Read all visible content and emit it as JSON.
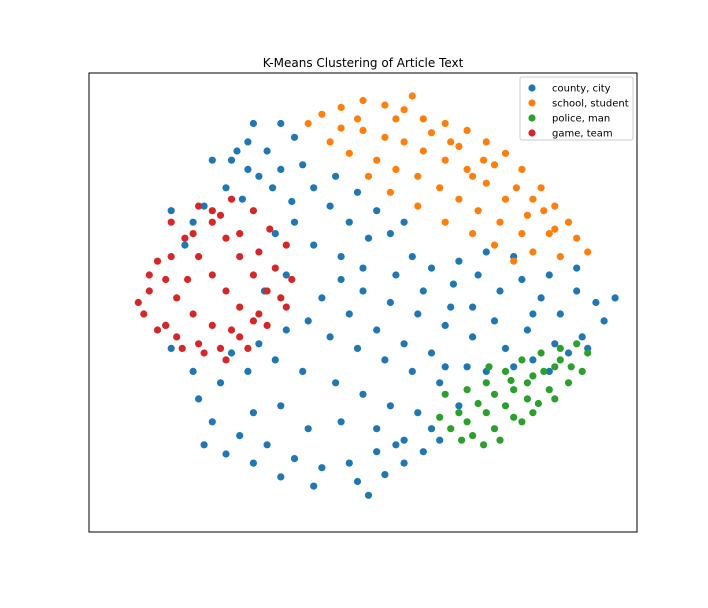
{
  "chart_data": {
    "type": "scatter",
    "title": "K-Means Clustering of Article Text",
    "xlabel": "",
    "ylabel": "",
    "xlim": [
      -1,
      1
    ],
    "ylim": [
      -1,
      1
    ],
    "grid": false,
    "axes_ticks": false,
    "legend_position": "top-right",
    "marker": "circle",
    "series": [
      {
        "name": "county, city",
        "color": "#1f77b4",
        "points": [
          [
            -0.48,
            0.62
          ],
          [
            -0.42,
            0.7
          ],
          [
            -0.35,
            0.66
          ],
          [
            -0.3,
            0.58
          ],
          [
            -0.22,
            0.6
          ],
          [
            -0.18,
            0.5
          ],
          [
            -0.26,
            0.44
          ],
          [
            -0.38,
            0.55
          ],
          [
            -0.5,
            0.5
          ],
          [
            -0.55,
            0.62
          ],
          [
            -0.44,
            0.45
          ],
          [
            -0.12,
            0.42
          ],
          [
            -0.05,
            0.35
          ],
          [
            0.02,
            0.28
          ],
          [
            0.1,
            0.3
          ],
          [
            0.18,
            0.2
          ],
          [
            0.25,
            0.15
          ],
          [
            0.33,
            0.08
          ],
          [
            0.42,
            0.12
          ],
          [
            0.5,
            0.05
          ],
          [
            0.58,
            0.1
          ],
          [
            0.65,
            0.02
          ],
          [
            0.72,
            -0.05
          ],
          [
            0.78,
            0.05
          ],
          [
            0.85,
            0.0
          ],
          [
            0.88,
            -0.08
          ],
          [
            0.8,
            -0.15
          ],
          [
            0.7,
            -0.18
          ],
          [
            0.6,
            -0.12
          ],
          [
            0.52,
            -0.2
          ],
          [
            0.4,
            -0.15
          ],
          [
            0.3,
            -0.1
          ],
          [
            0.2,
            -0.05
          ],
          [
            0.1,
            0.0
          ],
          [
            0.0,
            0.05
          ],
          [
            -0.08,
            0.1
          ],
          [
            -0.15,
            0.02
          ],
          [
            -0.2,
            -0.08
          ],
          [
            -0.12,
            -0.15
          ],
          [
            -0.02,
            -0.2
          ],
          [
            0.08,
            -0.25
          ],
          [
            0.18,
            -0.3
          ],
          [
            0.28,
            -0.35
          ],
          [
            0.35,
            -0.45
          ],
          [
            0.25,
            -0.55
          ],
          [
            0.15,
            -0.6
          ],
          [
            0.05,
            -0.65
          ],
          [
            -0.05,
            -0.7
          ],
          [
            -0.15,
            -0.72
          ],
          [
            -0.25,
            -0.68
          ],
          [
            -0.35,
            -0.62
          ],
          [
            -0.45,
            -0.58
          ],
          [
            -0.55,
            -0.52
          ],
          [
            -0.6,
            -0.42
          ],
          [
            -0.52,
            -0.35
          ],
          [
            -0.42,
            -0.3
          ],
          [
            -0.32,
            -0.25
          ],
          [
            -0.22,
            -0.3
          ],
          [
            -0.1,
            -0.35
          ],
          [
            0.0,
            -0.4
          ],
          [
            0.1,
            -0.45
          ],
          [
            -0.3,
            -0.45
          ],
          [
            -0.4,
            -0.48
          ],
          [
            -0.2,
            -0.55
          ],
          [
            -0.08,
            -0.52
          ],
          [
            0.05,
            -0.55
          ],
          [
            0.2,
            -0.48
          ],
          [
            0.12,
            -0.62
          ],
          [
            -0.02,
            -0.78
          ],
          [
            0.08,
            -0.75
          ],
          [
            -0.18,
            -0.8
          ],
          [
            0.15,
            -0.7
          ],
          [
            0.22,
            -0.65
          ],
          [
            -0.62,
            -0.3
          ],
          [
            -0.7,
            -0.2
          ],
          [
            -0.72,
            -0.1
          ],
          [
            -0.65,
            0.25
          ],
          [
            -0.62,
            0.35
          ],
          [
            -0.58,
            0.42
          ],
          [
            -0.7,
            0.4
          ],
          [
            -0.1,
            0.55
          ],
          [
            -0.02,
            0.48
          ],
          [
            0.05,
            0.4
          ],
          [
            0.15,
            0.35
          ],
          [
            -0.25,
            0.35
          ],
          [
            -0.32,
            0.3
          ],
          [
            -0.18,
            0.25
          ],
          [
            -0.08,
            0.2
          ],
          [
            0.45,
            -0.3
          ],
          [
            0.55,
            -0.28
          ],
          [
            0.62,
            -0.25
          ],
          [
            0.68,
            -0.3
          ],
          [
            0.75,
            -0.22
          ],
          [
            0.82,
            -0.2
          ],
          [
            0.92,
            0.02
          ],
          [
            0.78,
            0.15
          ],
          [
            0.68,
            0.12
          ],
          [
            0.55,
            0.2
          ],
          [
            0.45,
            0.22
          ],
          [
            0.35,
            0.18
          ],
          [
            -0.05,
            -0.05
          ],
          [
            0.05,
            -0.12
          ],
          [
            0.15,
            -0.18
          ],
          [
            -0.28,
            -0.12
          ],
          [
            -0.38,
            -0.18
          ],
          [
            -0.48,
            -0.22
          ],
          [
            0.25,
            -0.22
          ],
          [
            0.38,
            -0.28
          ],
          [
            -0.28,
            0.12
          ],
          [
            -0.36,
            0.05
          ],
          [
            -0.42,
            0.58
          ],
          [
            -0.4,
            0.78
          ],
          [
            -0.3,
            0.78
          ],
          [
            -0.25,
            0.72
          ],
          [
            -0.46,
            0.66
          ],
          [
            -0.33,
            0.5
          ],
          [
            0.0,
            0.15
          ],
          [
            0.12,
            0.12
          ],
          [
            0.22,
            0.05
          ],
          [
            0.32,
            -0.02
          ],
          [
            -0.58,
            -0.62
          ],
          [
            -0.5,
            -0.66
          ],
          [
            -0.4,
            -0.7
          ],
          [
            -0.3,
            -0.76
          ],
          [
            0.02,
            -0.84
          ],
          [
            0.28,
            -0.6
          ],
          [
            0.3,
            -0.28
          ],
          [
            0.4,
            -0.02
          ],
          [
            0.48,
            -0.08
          ],
          [
            0.62,
            -0.05
          ]
        ]
      },
      {
        "name": "school, student",
        "color": "#ff7f0e",
        "points": [
          [
            -0.15,
            0.82
          ],
          [
            -0.08,
            0.85
          ],
          [
            0.0,
            0.88
          ],
          [
            0.08,
            0.86
          ],
          [
            0.15,
            0.84
          ],
          [
            0.22,
            0.8
          ],
          [
            0.3,
            0.78
          ],
          [
            0.38,
            0.75
          ],
          [
            0.45,
            0.7
          ],
          [
            0.52,
            0.65
          ],
          [
            0.58,
            0.58
          ],
          [
            0.65,
            0.5
          ],
          [
            0.7,
            0.42
          ],
          [
            0.75,
            0.35
          ],
          [
            0.78,
            0.28
          ],
          [
            0.68,
            0.3
          ],
          [
            0.6,
            0.38
          ],
          [
            0.52,
            0.45
          ],
          [
            0.45,
            0.52
          ],
          [
            0.38,
            0.58
          ],
          [
            0.3,
            0.62
          ],
          [
            0.22,
            0.66
          ],
          [
            0.15,
            0.7
          ],
          [
            0.08,
            0.72
          ],
          [
            0.0,
            0.75
          ],
          [
            -0.08,
            0.76
          ],
          [
            -0.12,
            0.7
          ],
          [
            -0.05,
            0.65
          ],
          [
            0.05,
            0.62
          ],
          [
            0.12,
            0.58
          ],
          [
            0.2,
            0.55
          ],
          [
            0.28,
            0.5
          ],
          [
            0.35,
            0.45
          ],
          [
            0.42,
            0.4
          ],
          [
            0.5,
            0.35
          ],
          [
            0.58,
            0.3
          ],
          [
            0.62,
            0.22
          ],
          [
            0.55,
            0.18
          ],
          [
            0.48,
            0.25
          ],
          [
            0.4,
            0.3
          ],
          [
            0.3,
            0.35
          ],
          [
            0.2,
            0.42
          ],
          [
            0.1,
            0.48
          ],
          [
            0.02,
            0.55
          ],
          [
            -0.02,
            0.8
          ],
          [
            0.18,
            0.9
          ],
          [
            0.25,
            0.74
          ],
          [
            0.35,
            0.68
          ],
          [
            0.48,
            0.6
          ],
          [
            0.56,
            0.5
          ],
          [
            0.72,
            0.2
          ],
          [
            0.82,
            0.22
          ],
          [
            0.66,
            0.4
          ],
          [
            0.44,
            0.62
          ],
          [
            0.12,
            0.8
          ],
          [
            -0.2,
            0.78
          ],
          [
            0.32,
            0.7
          ],
          [
            0.62,
            0.45
          ],
          [
            0.7,
            0.32
          ],
          [
            0.4,
            0.55
          ]
        ]
      },
      {
        "name": "police, man",
        "color": "#2ca02c",
        "points": [
          [
            0.45,
            -0.35
          ],
          [
            0.52,
            -0.3
          ],
          [
            0.58,
            -0.25
          ],
          [
            0.65,
            -0.22
          ],
          [
            0.72,
            -0.2
          ],
          [
            0.78,
            -0.18
          ],
          [
            0.82,
            -0.22
          ],
          [
            0.8,
            -0.3
          ],
          [
            0.75,
            -0.35
          ],
          [
            0.68,
            -0.38
          ],
          [
            0.6,
            -0.42
          ],
          [
            0.52,
            -0.45
          ],
          [
            0.45,
            -0.48
          ],
          [
            0.38,
            -0.52
          ],
          [
            0.32,
            -0.55
          ],
          [
            0.4,
            -0.58
          ],
          [
            0.48,
            -0.55
          ],
          [
            0.55,
            -0.5
          ],
          [
            0.62,
            -0.48
          ],
          [
            0.7,
            -0.42
          ],
          [
            0.76,
            -0.28
          ],
          [
            0.7,
            -0.28
          ],
          [
            0.62,
            -0.32
          ],
          [
            0.55,
            -0.38
          ],
          [
            0.48,
            -0.4
          ],
          [
            0.42,
            -0.44
          ],
          [
            0.35,
            -0.48
          ],
          [
            0.3,
            -0.4
          ],
          [
            0.38,
            -0.38
          ],
          [
            0.6,
            -0.35
          ],
          [
            0.66,
            -0.3
          ],
          [
            0.72,
            -0.25
          ],
          [
            0.58,
            -0.52
          ],
          [
            0.5,
            -0.6
          ],
          [
            0.44,
            -0.62
          ],
          [
            0.36,
            -0.6
          ],
          [
            0.28,
            -0.5
          ],
          [
            0.64,
            -0.44
          ],
          [
            0.54,
            -0.34
          ],
          [
            0.46,
            -0.28
          ]
        ]
      },
      {
        "name": "game, team",
        "color": "#d62728",
        "points": [
          [
            -0.7,
            0.35
          ],
          [
            -0.65,
            0.28
          ],
          [
            -0.6,
            0.2
          ],
          [
            -0.55,
            0.12
          ],
          [
            -0.5,
            0.05
          ],
          [
            -0.45,
            -0.02
          ],
          [
            -0.4,
            -0.08
          ],
          [
            -0.48,
            -0.12
          ],
          [
            -0.55,
            -0.1
          ],
          [
            -0.62,
            -0.05
          ],
          [
            -0.68,
            0.02
          ],
          [
            -0.72,
            0.1
          ],
          [
            -0.75,
            0.18
          ],
          [
            -0.78,
            0.05
          ],
          [
            -0.8,
            -0.05
          ],
          [
            -0.75,
            -0.12
          ],
          [
            -0.68,
            -0.15
          ],
          [
            -0.6,
            -0.18
          ],
          [
            -0.52,
            -0.2
          ],
          [
            -0.45,
            -0.15
          ],
          [
            -0.38,
            -0.05
          ],
          [
            -0.35,
            0.05
          ],
          [
            -0.4,
            0.12
          ],
          [
            -0.45,
            0.2
          ],
          [
            -0.5,
            0.28
          ],
          [
            -0.55,
            0.35
          ],
          [
            -0.6,
            0.42
          ],
          [
            -0.52,
            0.38
          ],
          [
            -0.45,
            0.3
          ],
          [
            -0.38,
            0.22
          ],
          [
            -0.32,
            0.15
          ],
          [
            -0.3,
            0.02
          ],
          [
            -0.35,
            -0.1
          ],
          [
            -0.42,
            -0.2
          ],
          [
            -0.5,
            -0.25
          ],
          [
            -0.58,
            -0.22
          ],
          [
            -0.66,
            -0.2
          ],
          [
            -0.72,
            -0.1
          ],
          [
            -0.82,
            0.0
          ],
          [
            -0.78,
            0.12
          ],
          [
            -0.7,
            0.2
          ],
          [
            -0.62,
            0.3
          ],
          [
            -0.55,
            0.4
          ],
          [
            -0.48,
            0.45
          ],
          [
            -0.4,
            0.4
          ],
          [
            -0.34,
            0.32
          ],
          [
            -0.28,
            0.25
          ],
          [
            -0.26,
            0.1
          ],
          [
            -0.28,
            -0.02
          ],
          [
            -0.64,
            0.1
          ]
        ]
      }
    ]
  }
}
